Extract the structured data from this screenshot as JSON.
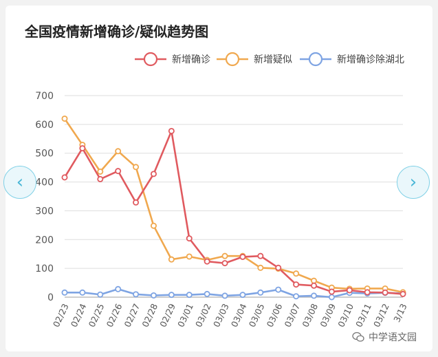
{
  "watermark": {
    "text": "中学语文园"
  },
  "navigation": {
    "prev": "‹",
    "next": "›"
  },
  "chart_data": {
    "type": "line",
    "title": "全国疫情新增确诊/疑似趋势图",
    "x": [
      "02/23",
      "02/24",
      "02/25",
      "02/26",
      "02/27",
      "02/28",
      "02/29",
      "03/01",
      "03/02",
      "03/03",
      "03/04",
      "03/05",
      "03/06",
      "03/07",
      "03/08",
      "03/09",
      "03/10",
      "03/11",
      "03/12",
      "3/13"
    ],
    "yticks": [
      0,
      100,
      200,
      300,
      400,
      500,
      600,
      700
    ],
    "ylim": [
      0,
      700
    ],
    "grid": true,
    "legend_position": "top-right",
    "series": [
      {
        "name": "新增确诊",
        "color": "#e05a5f",
        "values": [
          416,
          517,
          410,
          438,
          329,
          428,
          577,
          204,
          124,
          118,
          140,
          143,
          102,
          44,
          40,
          19,
          24,
          17,
          16,
          11
        ]
      },
      {
        "name": "新增疑似",
        "color": "#f0a84e",
        "values": [
          620,
          529,
          436,
          507,
          452,
          248,
          131,
          141,
          129,
          143,
          143,
          102,
          99,
          82,
          57,
          33,
          29,
          30,
          30,
          17
        ]
      },
      {
        "name": "新增确诊除湖北",
        "color": "#7ea4e3",
        "values": [
          16,
          16,
          9,
          28,
          10,
          6,
          8,
          8,
          11,
          5,
          8,
          16,
          26,
          3,
          5,
          0,
          15,
          13,
          15,
          13
        ]
      }
    ]
  }
}
